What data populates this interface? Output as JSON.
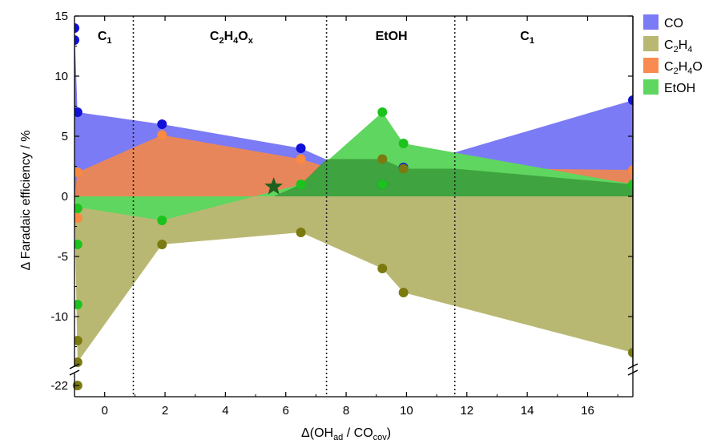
{
  "chart_data": {
    "type": "area",
    "xlabel_main": "Δ(OH",
    "xlabel_sub1": "ad",
    "xlabel_mid": " / CO",
    "xlabel_sub2": "cov",
    "xlabel_end": ")",
    "ylabel": "Δ Faradaic efficiency / %",
    "xlim": [
      -1,
      17.5
    ],
    "ylim": [
      -15,
      15
    ],
    "x_ticks": [
      0,
      2,
      4,
      6,
      8,
      10,
      12,
      14,
      16
    ],
    "x_tick_labels": [
      "0",
      "2",
      "4",
      "6",
      "8",
      "10",
      "12",
      "14",
      "16"
    ],
    "y_ticks": [
      -10,
      -5,
      0,
      5,
      10,
      15
    ],
    "y_tick_labels": [
      "-10",
      "-5",
      "0",
      "5",
      "10",
      "15"
    ],
    "y_break_label": "-22",
    "dividers": [
      0.95,
      7.35,
      11.6
    ],
    "regions": [
      {
        "x": 0.0,
        "main": "C",
        "sub": "1"
      },
      {
        "x": 4.2,
        "main": "C",
        "sub": "2",
        "main2": "H",
        "sub2": "4",
        "main3": "O",
        "sub3": "x"
      },
      {
        "x": 9.5,
        "main": "EtOH",
        "sub": ""
      },
      {
        "x": 14.0,
        "main": "C",
        "sub": "1"
      }
    ],
    "series": [
      {
        "name": "CO",
        "color": "#7b7bf5",
        "marker": "#1010d8",
        "area": [
          [
            -1,
            0
          ],
          [
            -1,
            14
          ],
          [
            -0.9,
            7
          ],
          [
            1.9,
            6
          ],
          [
            6.5,
            4
          ],
          [
            9.2,
            1
          ],
          [
            9.9,
            2.4
          ],
          [
            17.5,
            8
          ],
          [
            17.5,
            0
          ]
        ],
        "points": [
          [
            -1,
            14
          ],
          [
            -1,
            13
          ],
          [
            -0.9,
            7
          ],
          [
            1.9,
            6
          ],
          [
            6.5,
            4
          ],
          [
            9.2,
            1
          ],
          [
            9.9,
            2.4
          ],
          [
            17.5,
            8
          ]
        ]
      },
      {
        "name": "C2H4",
        "color": "#b9b873",
        "marker": "#7b7a10",
        "area": [
          [
            -1,
            0
          ],
          [
            -0.9,
            -13.8
          ],
          [
            1.9,
            -4
          ],
          [
            6.5,
            -3
          ],
          [
            9.2,
            -6
          ],
          [
            9.9,
            -8
          ],
          [
            17.5,
            -13
          ],
          [
            17.5,
            0
          ]
        ],
        "points": [
          [
            -0.9,
            -12
          ],
          [
            -0.9,
            -13.8
          ],
          [
            1.9,
            -4
          ],
          [
            6.5,
            -3
          ],
          [
            9.2,
            3.1
          ],
          [
            9.2,
            -6
          ],
          [
            9.9,
            2.3
          ],
          [
            9.9,
            -8
          ],
          [
            17.5,
            -13
          ]
        ]
      },
      {
        "name": "C2H4O",
        "color": "#e8865b",
        "marker": "#f98a40",
        "area": [
          [
            -1,
            0
          ],
          [
            -0.9,
            2
          ],
          [
            1.9,
            5.1
          ],
          [
            6.5,
            3.1
          ],
          [
            9.2,
            1
          ],
          [
            9.9,
            2.4
          ],
          [
            17.5,
            2.2
          ],
          [
            17.5,
            0
          ]
        ],
        "points": [
          [
            -0.9,
            2
          ],
          [
            -0.9,
            -1.8
          ],
          [
            1.9,
            5.1
          ],
          [
            6.5,
            3.1
          ],
          [
            17.5,
            2.2
          ]
        ]
      },
      {
        "name": "EtOH",
        "color": "#5fd65f",
        "marker": "#1cc31c",
        "area": [
          [
            -1,
            0
          ],
          [
            -0.9,
            -0.9
          ],
          [
            1.9,
            -2
          ],
          [
            6.5,
            1
          ],
          [
            9.2,
            7
          ],
          [
            9.9,
            4.4
          ],
          [
            17.5,
            1
          ],
          [
            17.5,
            0
          ]
        ],
        "points": [
          [
            -0.9,
            -1
          ],
          [
            -0.9,
            -4
          ],
          [
            -0.9,
            -9
          ],
          [
            1.9,
            -2
          ],
          [
            6.5,
            1
          ],
          [
            9.2,
            7
          ],
          [
            9.2,
            1
          ],
          [
            9.9,
            4.4
          ],
          [
            17.5,
            1
          ]
        ]
      }
    ],
    "overlap_region": {
      "color": "#3a9a3a",
      "area": [
        [
          6.5,
          1
        ],
        [
          7.35,
          3.1
        ],
        [
          9.2,
          3.1
        ],
        [
          9.9,
          2.3
        ],
        [
          11.6,
          2.3
        ],
        [
          17.5,
          1
        ],
        [
          17.5,
          0
        ],
        [
          5.6,
          0
        ]
      ]
    },
    "star": {
      "x": 5.6,
      "y": 0.8,
      "color": "#1f5f1f"
    },
    "break_point": {
      "x": -0.9,
      "y": -22,
      "color": "#7b7a10"
    },
    "legend": [
      {
        "label_main": "CO",
        "color": "#7b7bf5"
      },
      {
        "label_main": "C",
        "sub1": "2",
        "mid": "H",
        "sub2": "4",
        "color": "#b9b873"
      },
      {
        "label_main": "C",
        "sub1": "2",
        "mid": "H",
        "sub2": "4",
        "end": "O",
        "color": "#f98a50"
      },
      {
        "label_main": "EtOH",
        "color": "#5fd65f"
      }
    ]
  }
}
